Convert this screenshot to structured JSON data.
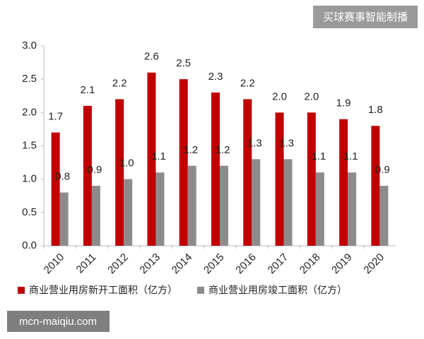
{
  "chart_data": {
    "type": "bar",
    "categories": [
      "2010",
      "2011",
      "2012",
      "2013",
      "2014",
      "2015",
      "2016",
      "2017",
      "2018",
      "2019",
      "2020"
    ],
    "series": [
      {
        "name": "商业营业用房新开工面积（亿方）",
        "color": "#c00000",
        "values": [
          1.7,
          2.1,
          2.2,
          2.6,
          2.5,
          2.3,
          2.2,
          2.0,
          2.0,
          1.9,
          1.8
        ],
        "value_labels": [
          "1.7",
          "2.1",
          "2.2",
          "2.6",
          "2.5",
          "2.3",
          "2.2",
          "2.0",
          "2.0",
          "1.9",
          "1.8"
        ]
      },
      {
        "name": "商业营业用房竣工面积（亿方）",
        "color": "#8c8c8c",
        "values": [
          0.8,
          0.9,
          1.0,
          1.1,
          1.2,
          1.2,
          1.3,
          1.3,
          1.1,
          1.1,
          0.9
        ],
        "value_labels": [
          "0.8",
          "0.9",
          "1.0",
          "1.1",
          "1.2",
          "1.2",
          "1.3",
          "1.3",
          "1.1",
          "1.1",
          "0.9"
        ]
      }
    ],
    "ylim": [
      0,
      3
    ],
    "yticks": [
      {
        "value": 0,
        "label": "0.0"
      },
      0.5,
      {
        "value": 1,
        "label": "1.0"
      },
      1.5,
      {
        "value": 2,
        "label": "2.0"
      },
      2.5,
      {
        "value": 3,
        "label": "3.0"
      }
    ],
    "legend": "bottom"
  },
  "overlay_texts": [
    "买球赛事智能制播",
    "mcn-maiqiu.com"
  ]
}
